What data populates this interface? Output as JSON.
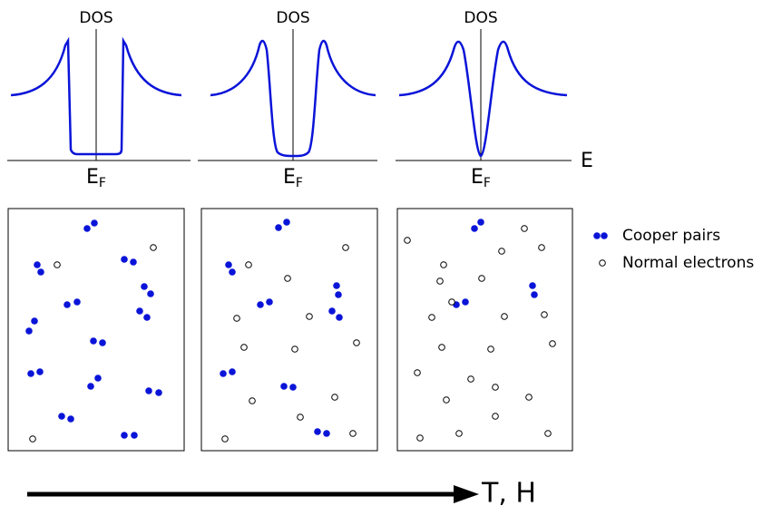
{
  "panels": [
    {
      "dos_label": "DOS",
      "fermi_label": {
        "main": "E",
        "sub": "F"
      }
    },
    {
      "dos_label": "DOS",
      "fermi_label": {
        "main": "E",
        "sub": "F"
      }
    },
    {
      "dos_label": "DOS",
      "fermi_label": {
        "main": "E",
        "sub": "F"
      }
    }
  ],
  "energy_axis_label": "E",
  "legend": {
    "cooper_pairs": "Cooper pairs",
    "normal_electrons": "Normal electrons"
  },
  "arrow_label": "T, H"
}
